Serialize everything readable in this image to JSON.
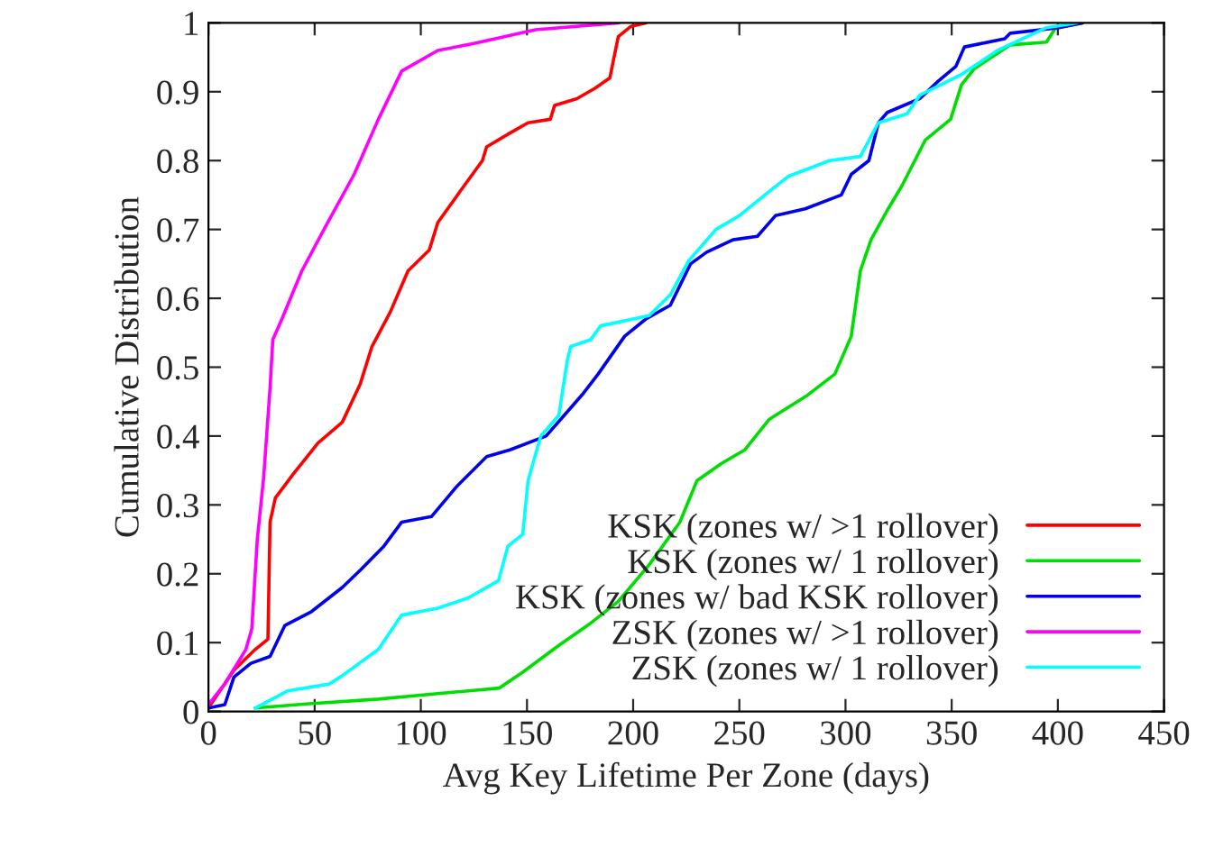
{
  "chart_data": {
    "type": "line",
    "xlabel": "Avg Key Lifetime Per Zone (days)",
    "ylabel": "Cumulative Distribution",
    "xlim": [
      0,
      450
    ],
    "xticks": [
      0,
      50,
      100,
      150,
      200,
      250,
      300,
      350,
      400,
      450
    ],
    "ylim": [
      0,
      1
    ],
    "yticks": [
      0,
      0.1,
      0.2,
      0.3,
      0.4,
      0.5,
      0.6,
      0.7,
      0.8,
      0.9,
      1
    ],
    "legend": "bottom right",
    "grid": false,
    "marker": "none",
    "line_style": "solid",
    "series": [
      {
        "name": "KSK (zones w/ >1 rollover)",
        "color": "#ff0000",
        "x": [
          1,
          12,
          22,
          28,
          29,
          31.5,
          40,
          51.6,
          63,
          71.4,
          77,
          85.6,
          94,
          104,
          108,
          119.6,
          129,
          131,
          142,
          150.5,
          161,
          163,
          173.5,
          182,
          189,
          193,
          199,
          206
        ],
        "values": [
          0.01,
          0.06,
          0.09,
          0.105,
          0.275,
          0.31,
          0.345,
          0.39,
          0.42,
          0.475,
          0.53,
          0.58,
          0.64,
          0.67,
          0.71,
          0.76,
          0.8,
          0.82,
          0.84,
          0.855,
          0.86,
          0.88,
          0.89,
          0.905,
          0.92,
          0.98,
          0.995,
          1
        ]
      },
      {
        "name": "KSK (zones w/ 1 rollover)",
        "color": "#00dd00",
        "x": [
          22,
          46,
          80,
          108,
          137,
          148,
          165,
          179,
          193,
          207.5,
          222,
          230,
          241.5,
          252.6,
          264,
          267,
          281.5,
          295,
          302.7,
          307,
          312,
          319.7,
          326.5,
          337.6,
          349.5,
          354.6,
          360.5,
          377.6,
          394.6,
          399,
          411.6
        ],
        "values": [
          0.005,
          0.011,
          0.018,
          0.026,
          0.034,
          0.057,
          0.096,
          0.126,
          0.16,
          0.213,
          0.275,
          0.335,
          0.36,
          0.38,
          0.424,
          0.43,
          0.458,
          0.49,
          0.545,
          0.64,
          0.685,
          0.728,
          0.763,
          0.83,
          0.86,
          0.91,
          0.933,
          0.968,
          0.972,
          0.993,
          1
        ]
      },
      {
        "name": "KSK (zones w/ bad KSK rollover)",
        "color": "#0000ee",
        "x": [
          0,
          7.7,
          12,
          20,
          29,
          36,
          48.5,
          63,
          71.4,
          82.6,
          91,
          105,
          117,
          131,
          142,
          159,
          167.5,
          176,
          183.5,
          196,
          206,
          217.5,
          227,
          234.6,
          247,
          258.5,
          267,
          281,
          298,
          302.7,
          311,
          315.5,
          319.7,
          335,
          343.5,
          352,
          356,
          375,
          377.6,
          400.5,
          411.6
        ],
        "values": [
          0.005,
          0.01,
          0.05,
          0.07,
          0.08,
          0.125,
          0.145,
          0.18,
          0.205,
          0.24,
          0.275,
          0.283,
          0.327,
          0.37,
          0.38,
          0.4,
          0.43,
          0.46,
          0.49,
          0.545,
          0.57,
          0.59,
          0.65,
          0.667,
          0.685,
          0.69,
          0.72,
          0.73,
          0.75,
          0.78,
          0.8,
          0.855,
          0.87,
          0.89,
          0.915,
          0.937,
          0.965,
          0.977,
          0.985,
          0.993,
          1
        ]
      },
      {
        "name": "ZSK (zones w/ >1 rollover)",
        "color": "#ff00ff",
        "x": [
          0,
          7.7,
          17.6,
          20.4,
          23,
          26,
          29,
          30.3,
          34.6,
          44,
          54.4,
          68.6,
          80,
          91,
          108,
          125,
          154,
          193
        ],
        "values": [
          0.01,
          0.04,
          0.09,
          0.12,
          0.25,
          0.34,
          0.47,
          0.54,
          0.57,
          0.64,
          0.7,
          0.78,
          0.86,
          0.93,
          0.96,
          0.97,
          0.99,
          1
        ]
      },
      {
        "name": "ZSK (zones w/ 1 rollover)",
        "color": "#00ffff",
        "x": [
          22,
          37.4,
          57,
          63,
          80,
          91,
          108,
          122.4,
          136.6,
          141,
          148,
          150.5,
          156.5,
          165,
          169,
          170.6,
          180,
          184.7,
          207.5,
          217.5,
          226,
          239,
          250,
          264,
          273,
          292.5,
          307,
          315.5,
          329,
          335,
          354.6,
          371.6,
          394.6,
          409
        ],
        "values": [
          0.005,
          0.03,
          0.04,
          0.052,
          0.09,
          0.14,
          0.15,
          0.165,
          0.19,
          0.24,
          0.257,
          0.335,
          0.4,
          0.43,
          0.51,
          0.53,
          0.54,
          0.56,
          0.575,
          0.605,
          0.654,
          0.7,
          0.72,
          0.755,
          0.777,
          0.8,
          0.806,
          0.855,
          0.868,
          0.895,
          0.925,
          0.96,
          0.993,
          1
        ]
      }
    ]
  }
}
